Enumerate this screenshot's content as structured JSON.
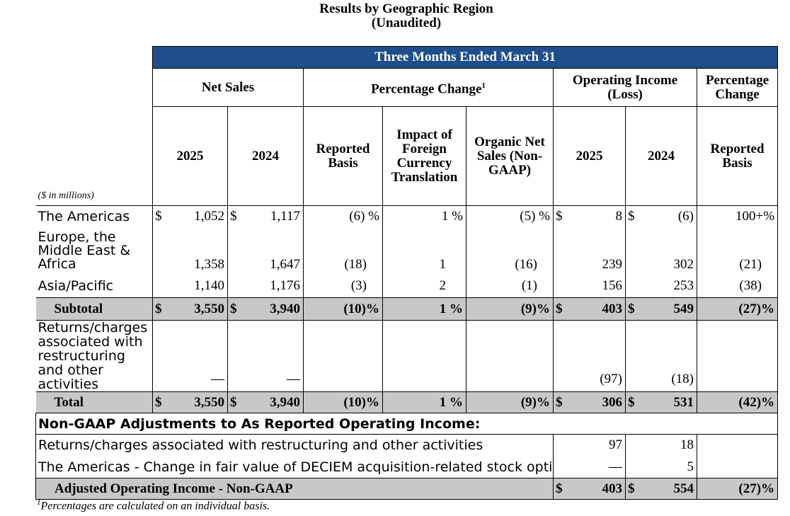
{
  "header": {
    "title": "Results by Geographic Region",
    "subtitle": "(Unaudited)"
  },
  "table": {
    "banner": "Three Months Ended March 31",
    "groups": {
      "net_sales": "Net Sales",
      "pct_change": "Percentage Change",
      "pct_change_sup": "1",
      "op_income": "Operating Income (Loss)",
      "pct_change2": "Percentage Change"
    },
    "cols": {
      "ns_2025": "2025",
      "ns_2024": "2024",
      "reported": "Reported Basis",
      "impact_fx": "Impact of Foreign Currency Translation",
      "organic": "Organic Net Sales (Non-GAAP)",
      "oi_2025": "2025",
      "oi_2024": "2024",
      "reported2": "Reported Basis"
    },
    "units": "($ in millions)",
    "rows": [
      {
        "label": "The Americas",
        "cur1": "$",
        "ns25": "1,052",
        "cur2": "$",
        "ns24": "1,117",
        "rep": "(6)",
        "rep_pct": "%",
        "fx": "1",
        "fx_pct": "%",
        "org": "(5)",
        "org_pct": "%",
        "cur3": "$",
        "oi25": "8",
        "cur4": "$",
        "oi24": "(6)",
        "chg": "100+%",
        "chg_pct": ""
      },
      {
        "label": "Europe, the Middle East & Africa",
        "cur1": "",
        "ns25": "1,358",
        "cur2": "",
        "ns24": "1,647",
        "rep": "(18)",
        "rep_pct": "",
        "fx": "1",
        "fx_pct": "",
        "org": "(16)",
        "org_pct": "",
        "cur3": "",
        "oi25": "239",
        "cur4": "",
        "oi24": "302",
        "chg": "(21)",
        "chg_pct": ""
      },
      {
        "label": "Asia/Pacific",
        "cur1": "",
        "ns25": "1,140",
        "cur2": "",
        "ns24": "1,176",
        "rep": "(3)",
        "rep_pct": "",
        "fx": "2",
        "fx_pct": "",
        "org": "(1)",
        "org_pct": "",
        "cur3": "",
        "oi25": "156",
        "cur4": "",
        "oi24": "253",
        "chg": "(38)",
        "chg_pct": ""
      }
    ],
    "subtotal": {
      "label": "Subtotal",
      "cur1": "$",
      "ns25": "3,550",
      "cur2": "$",
      "ns24": "3,940",
      "rep": "(10)%",
      "fx": "1",
      "fx_pct": "%",
      "org": "(9)%",
      "cur3": "$",
      "oi25": "403",
      "cur4": "$",
      "oi24": "549",
      "chg": "(27)%"
    },
    "returns": {
      "label": "Returns/charges associated with restructuring and other activities",
      "ns25": "—",
      "ns24": "—",
      "oi25": "(97)",
      "oi24": "(18)"
    },
    "total": {
      "label": "Total",
      "cur1": "$",
      "ns25": "3,550",
      "cur2": "$",
      "ns24": "3,940",
      "rep": "(10)%",
      "fx": "1",
      "fx_pct": "%",
      "org": "(9)%",
      "cur3": "$",
      "oi25": "306",
      "cur4": "$",
      "oi24": "531",
      "chg": "(42)%"
    },
    "nongaap_title": "Non-GAAP Adjustments to As Reported Operating Income:",
    "adj_rows": [
      {
        "label": "Returns/charges associated with restructuring and other activities",
        "oi25": "97",
        "oi24": "18"
      },
      {
        "label": "The Americas - Change in fair value of DECIEM acquisition-related stock options",
        "oi25": "—",
        "oi24": "5"
      }
    ],
    "adjusted": {
      "label": "Adjusted Operating Income - Non-GAAP",
      "cur3": "$",
      "oi25": "403",
      "cur4": "$",
      "oi24": "554",
      "chg": "(27)%"
    }
  },
  "footnote": {
    "sup": "1",
    "text": "Percentages are calculated on an individual basis."
  }
}
